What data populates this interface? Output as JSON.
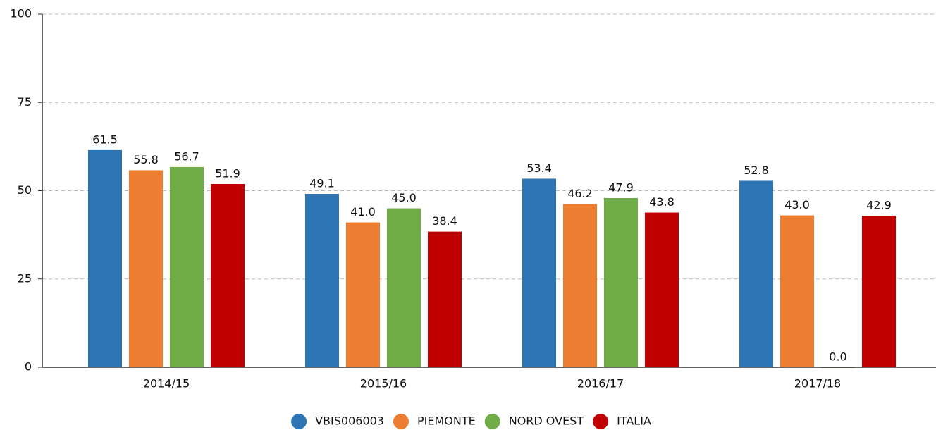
{
  "chart_data": {
    "type": "bar",
    "categories": [
      "2014/15",
      "2015/16",
      "2016/17",
      "2017/18"
    ],
    "series": [
      {
        "name": "VBIS006003",
        "color": "#2e75b6",
        "values": [
          61.5,
          49.1,
          53.4,
          52.8
        ],
        "value_labels": [
          "61.5",
          "49.1",
          "53.4",
          "52.8"
        ]
      },
      {
        "name": "PIEMONTE",
        "color": "#ed7d31",
        "values": [
          55.8,
          41.0,
          46.2,
          43.0
        ],
        "value_labels": [
          "55.8",
          "41.0",
          "46.2",
          "43.0"
        ]
      },
      {
        "name": "NORD OVEST",
        "color": "#70ad47",
        "values": [
          56.7,
          45.0,
          47.9,
          0.0
        ],
        "value_labels": [
          "56.7",
          "45.0",
          "47.9",
          "0.0"
        ]
      },
      {
        "name": "ITALIA",
        "color": "#c00000",
        "values": [
          51.9,
          38.4,
          43.8,
          42.9
        ],
        "value_labels": [
          "51.9",
          "38.4",
          "43.8",
          "42.9"
        ]
      }
    ],
    "ylim": [
      0,
      100
    ],
    "yticks": [
      0,
      25,
      50,
      75,
      100
    ],
    "grid": true,
    "legend": "bottom"
  }
}
